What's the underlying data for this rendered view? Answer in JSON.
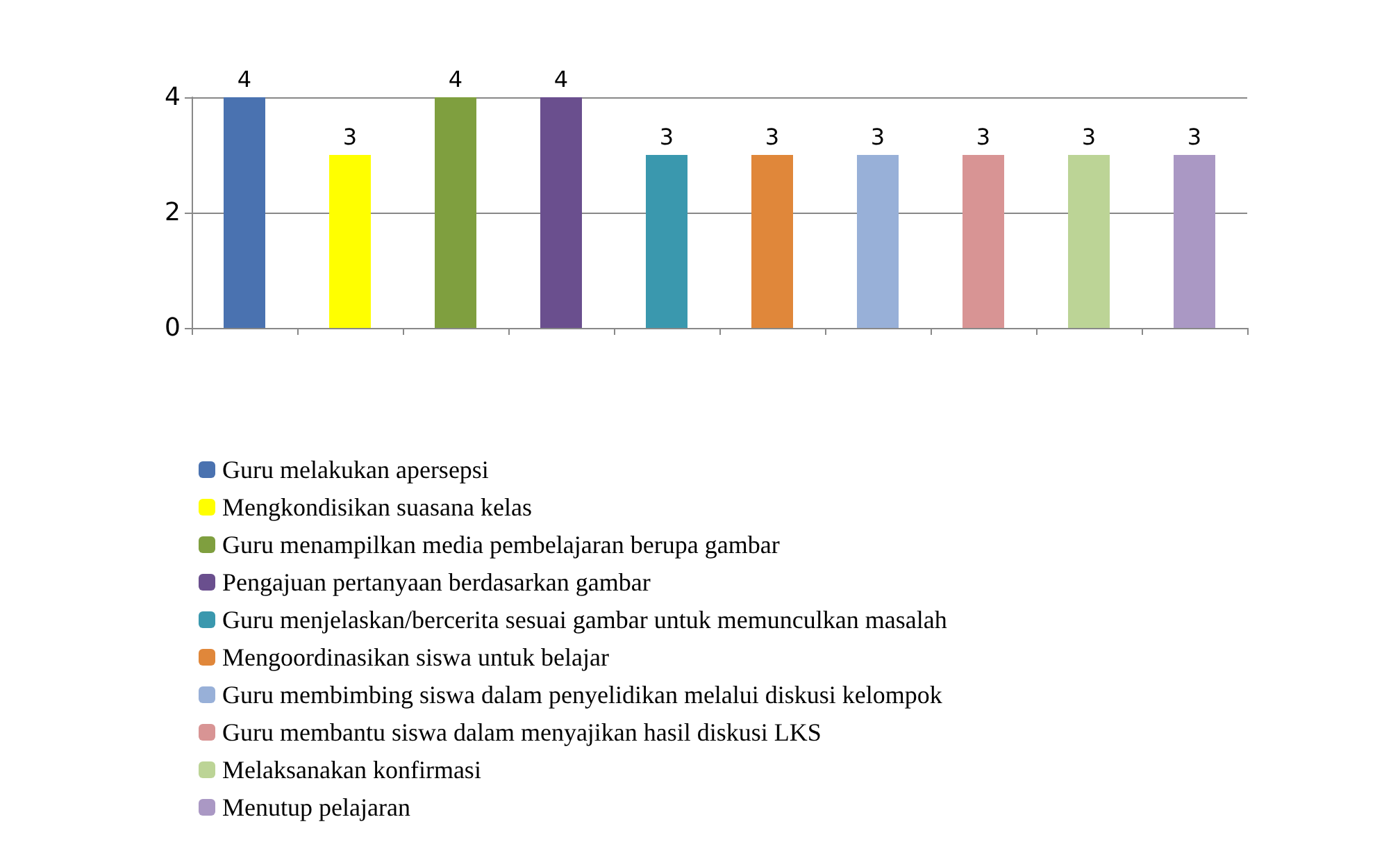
{
  "chart_data": {
    "type": "bar",
    "categories": [
      null,
      null,
      null,
      null,
      null,
      null,
      null,
      null,
      null,
      null
    ],
    "series": [
      {
        "name": "Guru melakukan apersepsi",
        "color": "#4a72b0",
        "values": [
          4,
          null,
          null,
          null,
          null,
          null,
          null,
          null,
          null,
          null
        ]
      },
      {
        "name": "Mengkondisikan suasana kelas",
        "color": "#ffff00",
        "values": [
          null,
          3,
          null,
          null,
          null,
          null,
          null,
          null,
          null,
          null
        ]
      },
      {
        "name": "Guru menampilkan media pembelajaran berupa gambar",
        "color": "#7f9f3f",
        "values": [
          null,
          null,
          4,
          null,
          null,
          null,
          null,
          null,
          null,
          null
        ]
      },
      {
        "name": "Pengajuan pertanyaan berdasarkan gambar",
        "color": "#6a4f8e",
        "values": [
          null,
          null,
          null,
          4,
          null,
          null,
          null,
          null,
          null,
          null
        ]
      },
      {
        "name": "Guru menjelaskan/bercerita sesuai gambar untuk memunculkan masalah",
        "color": "#3a98ae",
        "values": [
          null,
          null,
          null,
          null,
          3,
          null,
          null,
          null,
          null,
          null
        ]
      },
      {
        "name": "Mengoordinasikan siswa untuk belajar",
        "color": "#e0873a",
        "values": [
          null,
          null,
          null,
          null,
          null,
          3,
          null,
          null,
          null,
          null
        ]
      },
      {
        "name": "Guru membimbing siswa dalam penyelidikan melalui diskusi kelompok",
        "color": "#98b0d8",
        "values": [
          null,
          null,
          null,
          null,
          null,
          null,
          3,
          null,
          null,
          null
        ]
      },
      {
        "name": "Guru membantu siswa dalam menyajikan hasil diskusi LKS",
        "color": "#d89494",
        "values": [
          null,
          null,
          null,
          null,
          null,
          null,
          null,
          3,
          null,
          null
        ]
      },
      {
        "name": "Melaksanakan konfirmasi",
        "color": "#bcd496",
        "values": [
          null,
          null,
          null,
          null,
          null,
          null,
          null,
          null,
          3,
          null
        ]
      },
      {
        "name": "Menutup pelajaran",
        "color": "#aa98c4",
        "values": [
          null,
          null,
          null,
          null,
          null,
          null,
          null,
          null,
          null,
          3
        ]
      }
    ],
    "ylim": [
      0,
      4
    ],
    "yticks": [
      0,
      2,
      4
    ],
    "grid": "y",
    "legend": "bottom",
    "data_labels": true
  }
}
